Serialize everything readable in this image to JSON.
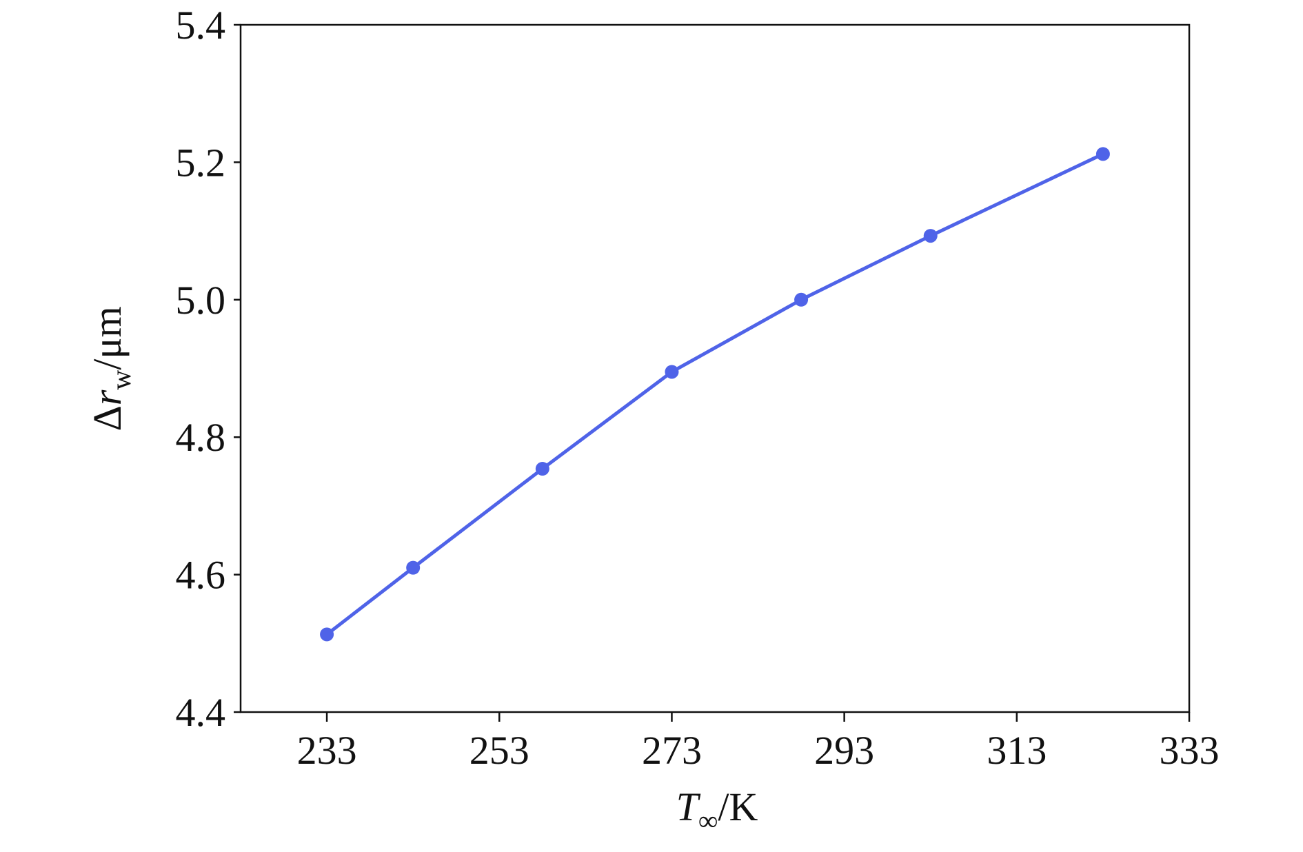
{
  "chart_data": {
    "type": "line",
    "xlabel": {
      "symbol": "T",
      "subscript": "∞",
      "unit": "/K"
    },
    "ylabel": {
      "prefix": "Δ",
      "symbol": "r",
      "subscript": "w",
      "unit": "/μm"
    },
    "x": [
      233,
      243,
      258,
      273,
      288,
      303,
      323
    ],
    "series": [
      {
        "color": "#4f63e8",
        "values": [
          4.513,
          4.61,
          4.754,
          4.895,
          5.0,
          5.093,
          5.212
        ]
      }
    ],
    "xlim": [
      223,
      333
    ],
    "xticks": [
      233,
      253,
      273,
      293,
      313,
      333
    ],
    "ylim": [
      4.4,
      5.4
    ],
    "yticks": [
      4.4,
      4.6,
      4.8,
      {
        "value": 5,
        "label": "5.0"
      },
      5.2,
      5.4
    ],
    "grid": false
  }
}
